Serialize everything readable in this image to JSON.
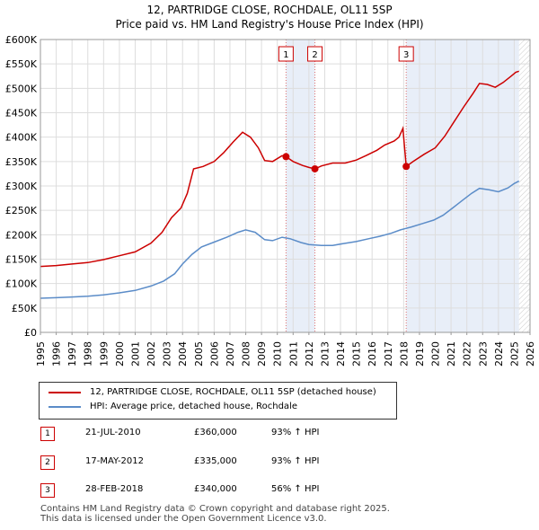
{
  "title_line1": "12, PARTRIDGE CLOSE, ROCHDALE, OL11 5SP",
  "title_line2": "Price paid vs. HM Land Registry's House Price Index (HPI)",
  "chart_data": {
    "type": "line",
    "title": "Price paid vs. HM Land Registry's House Price Index (HPI)",
    "xlabel": "",
    "ylabel": "",
    "xlim": [
      1995,
      2026
    ],
    "ylim": [
      0,
      600000
    ],
    "y_ticks": [
      0,
      50000,
      100000,
      150000,
      200000,
      250000,
      300000,
      350000,
      400000,
      450000,
      500000,
      550000,
      600000
    ],
    "y_tick_labels": [
      "£0",
      "£50K",
      "£100K",
      "£150K",
      "£200K",
      "£250K",
      "£300K",
      "£350K",
      "£400K",
      "£450K",
      "£500K",
      "£550K",
      "£600K"
    ],
    "x_ticks": [
      "1995",
      "1996",
      "1997",
      "1998",
      "1999",
      "2000",
      "2001",
      "2002",
      "2003",
      "2004",
      "2005",
      "2006",
      "2007",
      "2008",
      "2009",
      "2010",
      "2011",
      "2012",
      "2013",
      "2014",
      "2015",
      "2016",
      "2017",
      "2018",
      "2019",
      "2020",
      "2021",
      "2022",
      "2023",
      "2024",
      "2025",
      "2026"
    ],
    "grid": true,
    "series": [
      {
        "name": "12, PARTRIDGE CLOSE, ROCHDALE, OL11 5SP (detached house)",
        "color": "#cc0000",
        "points": [
          [
            1995.0,
            135000
          ],
          [
            1996.0,
            137000
          ],
          [
            1997.0,
            140000
          ],
          [
            1998.0,
            143000
          ],
          [
            1999.0,
            149000
          ],
          [
            2000.0,
            157000
          ],
          [
            2001.0,
            165000
          ],
          [
            2002.0,
            183000
          ],
          [
            2002.7,
            205000
          ],
          [
            2003.3,
            235000
          ],
          [
            2003.9,
            255000
          ],
          [
            2004.3,
            285000
          ],
          [
            2004.7,
            335000
          ],
          [
            2005.3,
            340000
          ],
          [
            2006.0,
            350000
          ],
          [
            2006.6,
            368000
          ],
          [
            2007.2,
            390000
          ],
          [
            2007.8,
            410000
          ],
          [
            2008.3,
            400000
          ],
          [
            2008.8,
            378000
          ],
          [
            2009.2,
            352000
          ],
          [
            2009.7,
            350000
          ],
          [
            2010.3,
            362000
          ],
          [
            2010.55,
            360000
          ],
          [
            2011.0,
            350000
          ],
          [
            2011.6,
            342000
          ],
          [
            2012.0,
            338000
          ],
          [
            2012.38,
            335000
          ],
          [
            2012.8,
            341000
          ],
          [
            2013.5,
            347000
          ],
          [
            2014.3,
            347000
          ],
          [
            2015.0,
            353000
          ],
          [
            2015.6,
            362000
          ],
          [
            2016.3,
            373000
          ],
          [
            2016.8,
            384000
          ],
          [
            2017.4,
            392000
          ],
          [
            2017.7,
            400000
          ],
          [
            2017.95,
            418000
          ],
          [
            2018.16,
            340000
          ],
          [
            2018.6,
            350000
          ],
          [
            2019.3,
            365000
          ],
          [
            2020.0,
            378000
          ],
          [
            2020.6,
            402000
          ],
          [
            2021.2,
            432000
          ],
          [
            2021.8,
            462000
          ],
          [
            2022.4,
            490000
          ],
          [
            2022.8,
            510000
          ],
          [
            2023.3,
            508000
          ],
          [
            2023.8,
            502000
          ],
          [
            2024.3,
            512000
          ],
          [
            2024.8,
            525000
          ],
          [
            2025.1,
            533000
          ],
          [
            2025.3,
            535000
          ]
        ]
      },
      {
        "name": "HPI: Average price, detached house, Rochdale",
        "color": "#5b8cc8",
        "points": [
          [
            1995.0,
            70000
          ],
          [
            1996.0,
            71000
          ],
          [
            1997.0,
            72500
          ],
          [
            1998.0,
            74000
          ],
          [
            1999.0,
            77000
          ],
          [
            2000.0,
            81000
          ],
          [
            2001.0,
            86000
          ],
          [
            2002.0,
            95000
          ],
          [
            2002.8,
            105000
          ],
          [
            2003.5,
            120000
          ],
          [
            2004.0,
            140000
          ],
          [
            2004.6,
            160000
          ],
          [
            2005.2,
            175000
          ],
          [
            2006.0,
            185000
          ],
          [
            2006.8,
            195000
          ],
          [
            2007.5,
            205000
          ],
          [
            2008.0,
            210000
          ],
          [
            2008.6,
            205000
          ],
          [
            2009.2,
            190000
          ],
          [
            2009.7,
            188000
          ],
          [
            2010.3,
            195000
          ],
          [
            2010.8,
            192000
          ],
          [
            2011.5,
            184000
          ],
          [
            2012.0,
            180000
          ],
          [
            2012.8,
            178000
          ],
          [
            2013.5,
            178000
          ],
          [
            2014.2,
            182000
          ],
          [
            2015.0,
            186000
          ],
          [
            2015.8,
            192000
          ],
          [
            2016.5,
            197000
          ],
          [
            2017.2,
            203000
          ],
          [
            2017.8,
            210000
          ],
          [
            2018.5,
            216000
          ],
          [
            2019.2,
            223000
          ],
          [
            2019.9,
            230000
          ],
          [
            2020.5,
            240000
          ],
          [
            2021.1,
            255000
          ],
          [
            2021.7,
            270000
          ],
          [
            2022.3,
            285000
          ],
          [
            2022.8,
            295000
          ],
          [
            2023.4,
            292000
          ],
          [
            2024.0,
            288000
          ],
          [
            2024.6,
            296000
          ],
          [
            2025.0,
            305000
          ],
          [
            2025.3,
            310000
          ]
        ]
      }
    ],
    "transactions": [
      {
        "label": "1",
        "x": 2010.55,
        "price": 360000,
        "date": "21-JUL-2010",
        "price_text": "£360,000",
        "hpi": "93% ↑ HPI"
      },
      {
        "label": "2",
        "x": 2012.38,
        "price": 335000,
        "date": "17-MAY-2012",
        "price_text": "£335,000",
        "hpi": "93% ↑ HPI"
      },
      {
        "label": "3",
        "x": 2018.16,
        "price": 340000,
        "date": "28-FEB-2018",
        "price_text": "£340,000",
        "hpi": "56% ↑ HPI"
      }
    ],
    "shaded_ranges": [
      [
        2010.55,
        2012.38
      ],
      [
        2018.16,
        2025.3
      ]
    ],
    "hatch_from": 2025.3,
    "legend_position": "below"
  },
  "legend": {
    "item1": "12, PARTRIDGE CLOSE, ROCHDALE, OL11 5SP (detached house)",
    "item2": "HPI: Average price, detached house, Rochdale"
  },
  "footer": {
    "line1": "Contains HM Land Registry data © Crown copyright and database right 2025.",
    "line2": "This data is licensed under the Open Government Licence v3.0."
  }
}
